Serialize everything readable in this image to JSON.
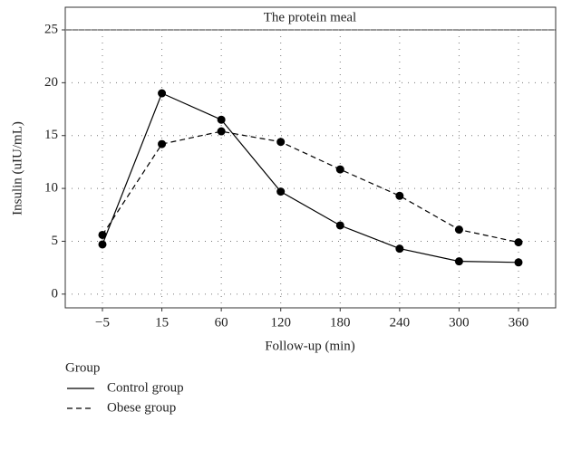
{
  "chart_data": {
    "type": "line",
    "title": "The protein meal",
    "x_label": "Follow-up (min)",
    "y_label": "Insulin (uIU/mL)",
    "categories": [
      "−5",
      "15",
      "60",
      "120",
      "180",
      "240",
      "300",
      "360"
    ],
    "series": [
      {
        "name": "Control group",
        "color": "#000000",
        "dash": false,
        "values": [
          4.7,
          19.0,
          16.5,
          9.7,
          6.5,
          4.3,
          3.1,
          3.0
        ]
      },
      {
        "name": "Obese group",
        "color": "#000000",
        "dash": true,
        "values": [
          5.6,
          14.2,
          15.4,
          14.4,
          11.8,
          9.3,
          6.1,
          4.9
        ]
      }
    ],
    "ylim": [
      -1.3,
      25
    ],
    "yticks": [
      0,
      5,
      10,
      15,
      20,
      25
    ],
    "grid": true,
    "legend_title": "Group",
    "legend_position": "bottom-left"
  }
}
